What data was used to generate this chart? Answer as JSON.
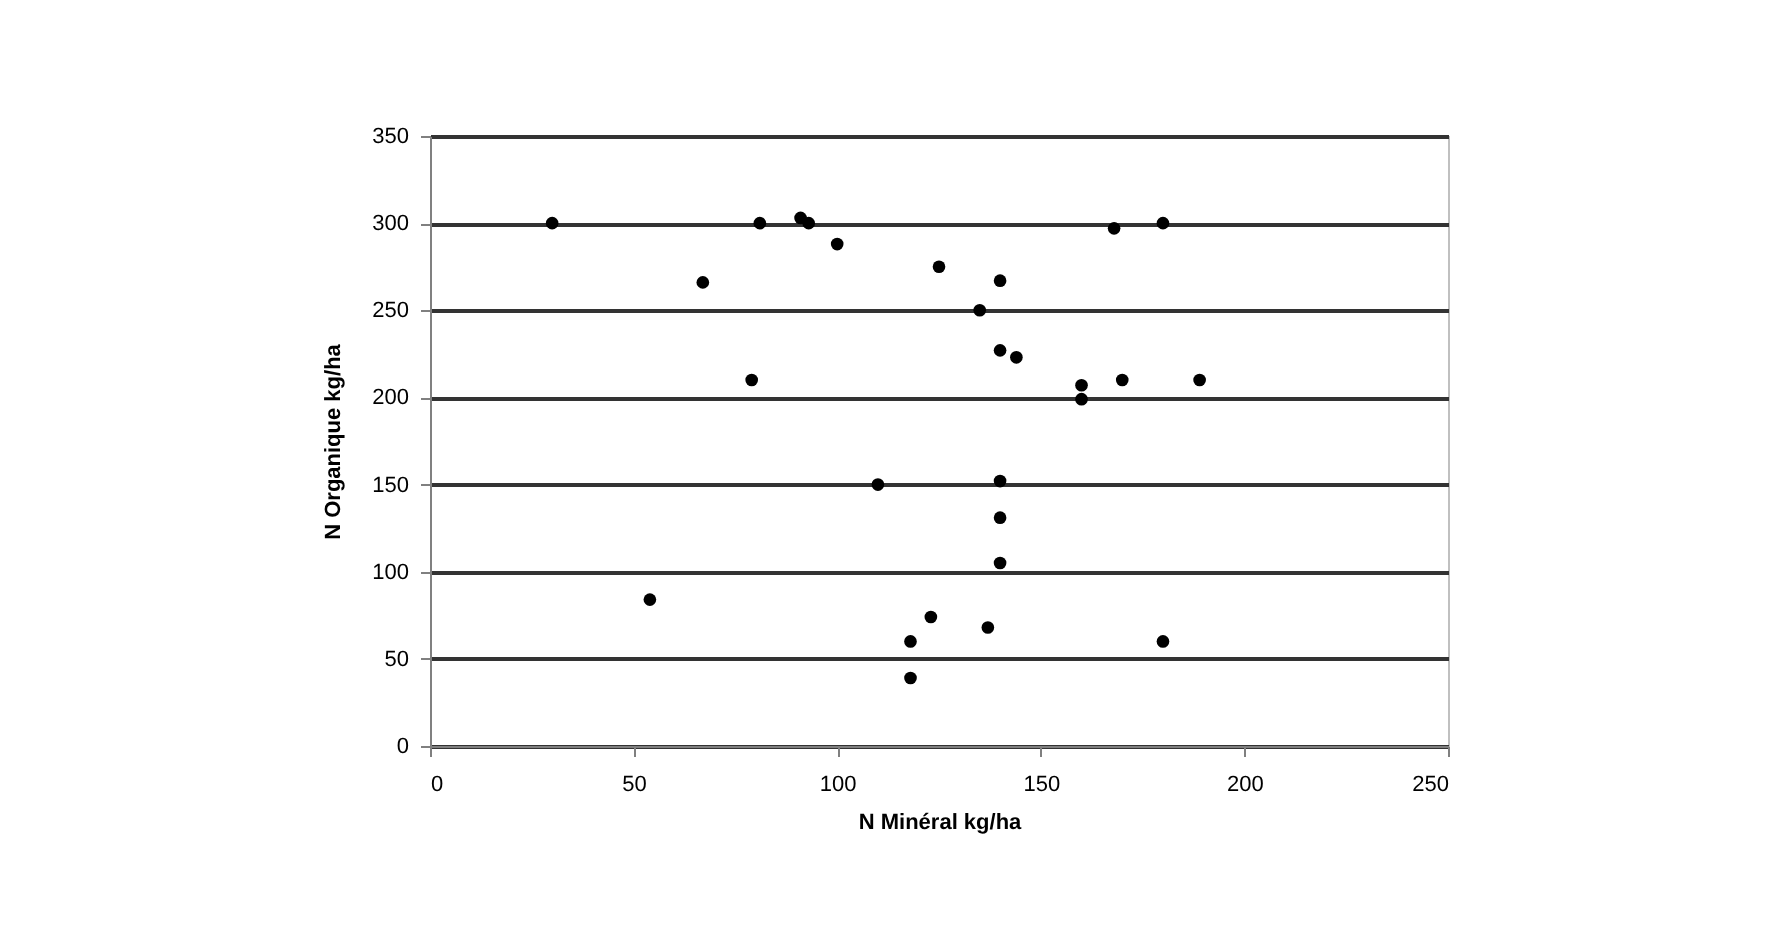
{
  "chart_data": {
    "type": "scatter",
    "xlabel": "N Minéral kg/ha",
    "ylabel": "N Organique kg/ha",
    "x": [
      30,
      67,
      81,
      91,
      93,
      100,
      79,
      110,
      54,
      118,
      118,
      125,
      140,
      135,
      140,
      144,
      160,
      160,
      170,
      189,
      168,
      180,
      140,
      140,
      140,
      123,
      137,
      180
    ],
    "series": [
      {
        "color": "#000000",
        "values": [
          300,
          266,
          300,
          303,
          300,
          288,
          210,
          150,
          84,
          60,
          39,
          275,
          267,
          250,
          227,
          223,
          207,
          199,
          210,
          210,
          297,
          300,
          152,
          131,
          105,
          74,
          68,
          60
        ]
      }
    ],
    "xlim": [
      0,
      250
    ],
    "xticks": [
      0,
      50,
      100,
      150,
      200,
      250
    ],
    "ylim": [
      0,
      350
    ],
    "yticks": [
      0,
      50,
      100,
      150,
      200,
      250,
      300,
      350
    ],
    "grid": "y",
    "marker": "circle",
    "legend": false
  }
}
